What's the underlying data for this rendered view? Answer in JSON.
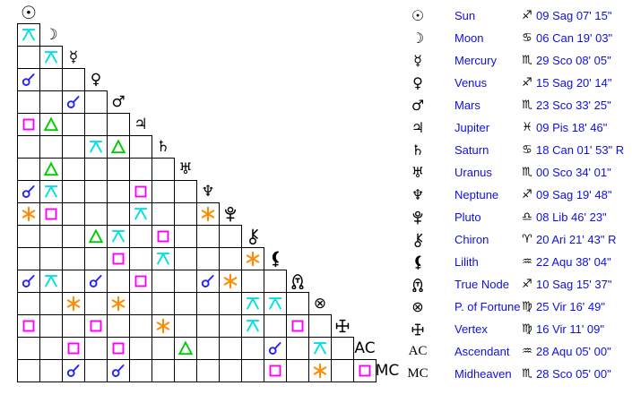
{
  "colors": {
    "text_blue": "#0f0fe0",
    "glyph_black": "#000000",
    "grid_line": "#000000",
    "background": "#ffffff",
    "aspect_conjunction": "#2222ff",
    "aspect_sextile": "#ff8c00",
    "aspect_square": "#ff00ff",
    "aspect_trine": "#00cc00",
    "aspect_quincunx": "#00e0e0"
  },
  "chart_data": {
    "type": "table",
    "description": "Natal aspect grid (aspectarian) with planet positions",
    "planets": [
      {
        "id": "sun",
        "icon": "sun-icon",
        "glyph": "☉",
        "glyph_kind": "unicode",
        "name": "Sun",
        "sign_icon": "sagittarius-icon",
        "sign": "♐",
        "position": "09 Sag 07' 15\""
      },
      {
        "id": "moon",
        "icon": "moon-icon",
        "glyph": "☽",
        "glyph_kind": "unicode",
        "name": "Moon",
        "sign_icon": "cancer-icon",
        "sign": "♋",
        "position": "06 Can 19' 03\""
      },
      {
        "id": "mercury",
        "icon": "mercury-icon",
        "glyph": "☿",
        "glyph_kind": "unicode",
        "name": "Mercury",
        "sign_icon": "scorpio-icon",
        "sign": "♏",
        "position": "29 Sco 08' 05\""
      },
      {
        "id": "venus",
        "icon": "venus-icon",
        "glyph": "♀",
        "glyph_kind": "unicode",
        "name": "Venus",
        "sign_icon": "sagittarius-icon",
        "sign": "♐",
        "position": "15 Sag 20' 14\""
      },
      {
        "id": "mars",
        "icon": "mars-icon",
        "glyph": "♂",
        "glyph_kind": "unicode",
        "name": "Mars",
        "sign_icon": "scorpio-icon",
        "sign": "♏",
        "position": "23 Sco 33' 25\""
      },
      {
        "id": "jupiter",
        "icon": "jupiter-icon",
        "glyph": "♃",
        "glyph_kind": "unicode",
        "name": "Jupiter",
        "sign_icon": "pisces-icon",
        "sign": "♓",
        "position": "09 Pis 18' 46\""
      },
      {
        "id": "saturn",
        "icon": "saturn-icon",
        "glyph": "♄",
        "glyph_kind": "unicode",
        "name": "Saturn",
        "sign_icon": "cancer-icon",
        "sign": "♋",
        "position": "18 Can 01' 53\" R"
      },
      {
        "id": "uranus",
        "icon": "uranus-icon",
        "glyph": "♅",
        "glyph_kind": "unicode",
        "name": "Uranus",
        "sign_icon": "scorpio-icon",
        "sign": "♏",
        "position": "00 Sco 34' 01\""
      },
      {
        "id": "neptune",
        "icon": "neptune-icon",
        "glyph": "♆",
        "glyph_kind": "unicode",
        "name": "Neptune",
        "sign_icon": "sagittarius-icon",
        "sign": "♐",
        "position": "09 Sag 19' 48\""
      },
      {
        "id": "pluto",
        "icon": "pluto-icon",
        "glyph": "pluto",
        "glyph_kind": "svg",
        "name": "Pluto",
        "sign_icon": "libra-icon",
        "sign": "♎",
        "position": "08 Lib 46' 23\""
      },
      {
        "id": "chiron",
        "icon": "chiron-icon",
        "glyph": "chiron",
        "glyph_kind": "svg",
        "name": "Chiron",
        "sign_icon": "aries-icon",
        "sign": "♈",
        "position": "20 Ari 21' 43\" R"
      },
      {
        "id": "lilith",
        "icon": "lilith-icon",
        "glyph": "lilith",
        "glyph_kind": "svg",
        "name": "Lilith",
        "sign_icon": "aquarius-icon",
        "sign": "♒",
        "position": "22 Aqu 38' 04\""
      },
      {
        "id": "true-node",
        "icon": "true-node-icon",
        "glyph": "true-node",
        "glyph_kind": "svg",
        "name": "True Node",
        "sign_icon": "sagittarius-icon",
        "sign": "♐",
        "position": "10 Sag 15' 37\""
      },
      {
        "id": "fortune",
        "icon": "part-of-fortune-icon",
        "glyph": "⊗",
        "glyph_kind": "unicode",
        "name": "P. of Fortune",
        "sign_icon": "virgo-icon",
        "sign": "♍",
        "position": "25 Vir 16' 49\""
      },
      {
        "id": "vertex",
        "icon": "vertex-icon",
        "glyph": "vertex",
        "glyph_kind": "svg",
        "name": "Vertex",
        "sign_icon": "virgo-icon",
        "sign": "♍",
        "position": "16 Vir 11' 09\""
      },
      {
        "id": "ascendant",
        "icon": "ascendant-icon",
        "glyph": "AC",
        "glyph_kind": "serif",
        "name": "Ascendant",
        "sign_icon": "aquarius-icon",
        "sign": "♒",
        "position": "28 Aqu 05' 00\""
      },
      {
        "id": "midheaven",
        "icon": "midheaven-icon",
        "glyph": "MC",
        "glyph_kind": "serif",
        "name": "Midheaven",
        "sign_icon": "scorpio-icon",
        "sign": "♏",
        "position": "28 Sco 05' 00\""
      }
    ],
    "aspects": [
      {
        "row": 1,
        "col": 0,
        "type": "quincunx"
      },
      {
        "row": 2,
        "col": 1,
        "type": "quincunx"
      },
      {
        "row": 3,
        "col": 0,
        "type": "conjunction"
      },
      {
        "row": 4,
        "col": 2,
        "type": "conjunction"
      },
      {
        "row": 5,
        "col": 0,
        "type": "square"
      },
      {
        "row": 5,
        "col": 1,
        "type": "trine"
      },
      {
        "row": 6,
        "col": 3,
        "type": "quincunx"
      },
      {
        "row": 6,
        "col": 4,
        "type": "trine"
      },
      {
        "row": 7,
        "col": 1,
        "type": "trine"
      },
      {
        "row": 8,
        "col": 0,
        "type": "conjunction"
      },
      {
        "row": 8,
        "col": 1,
        "type": "quincunx"
      },
      {
        "row": 8,
        "col": 5,
        "type": "square"
      },
      {
        "row": 9,
        "col": 0,
        "type": "sextile"
      },
      {
        "row": 9,
        "col": 1,
        "type": "square"
      },
      {
        "row": 9,
        "col": 5,
        "type": "quincunx"
      },
      {
        "row": 9,
        "col": 8,
        "type": "sextile"
      },
      {
        "row": 10,
        "col": 3,
        "type": "trine"
      },
      {
        "row": 10,
        "col": 4,
        "type": "quincunx"
      },
      {
        "row": 10,
        "col": 6,
        "type": "square"
      },
      {
        "row": 11,
        "col": 4,
        "type": "square"
      },
      {
        "row": 11,
        "col": 6,
        "type": "quincunx"
      },
      {
        "row": 11,
        "col": 10,
        "type": "sextile"
      },
      {
        "row": 12,
        "col": 0,
        "type": "conjunction"
      },
      {
        "row": 12,
        "col": 1,
        "type": "quincunx"
      },
      {
        "row": 12,
        "col": 3,
        "type": "conjunction"
      },
      {
        "row": 12,
        "col": 5,
        "type": "square"
      },
      {
        "row": 12,
        "col": 8,
        "type": "conjunction"
      },
      {
        "row": 12,
        "col": 9,
        "type": "sextile"
      },
      {
        "row": 13,
        "col": 2,
        "type": "sextile"
      },
      {
        "row": 13,
        "col": 4,
        "type": "sextile"
      },
      {
        "row": 13,
        "col": 10,
        "type": "quincunx"
      },
      {
        "row": 13,
        "col": 11,
        "type": "quincunx"
      },
      {
        "row": 14,
        "col": 0,
        "type": "square"
      },
      {
        "row": 14,
        "col": 3,
        "type": "square"
      },
      {
        "row": 14,
        "col": 6,
        "type": "sextile"
      },
      {
        "row": 14,
        "col": 10,
        "type": "quincunx"
      },
      {
        "row": 14,
        "col": 12,
        "type": "square"
      },
      {
        "row": 15,
        "col": 2,
        "type": "square"
      },
      {
        "row": 15,
        "col": 4,
        "type": "square"
      },
      {
        "row": 15,
        "col": 7,
        "type": "trine"
      },
      {
        "row": 15,
        "col": 11,
        "type": "conjunction"
      },
      {
        "row": 15,
        "col": 13,
        "type": "quincunx"
      },
      {
        "row": 16,
        "col": 2,
        "type": "conjunction"
      },
      {
        "row": 16,
        "col": 4,
        "type": "conjunction"
      },
      {
        "row": 16,
        "col": 11,
        "type": "square"
      },
      {
        "row": 16,
        "col": 13,
        "type": "sextile"
      },
      {
        "row": 16,
        "col": 15,
        "type": "square"
      }
    ]
  }
}
